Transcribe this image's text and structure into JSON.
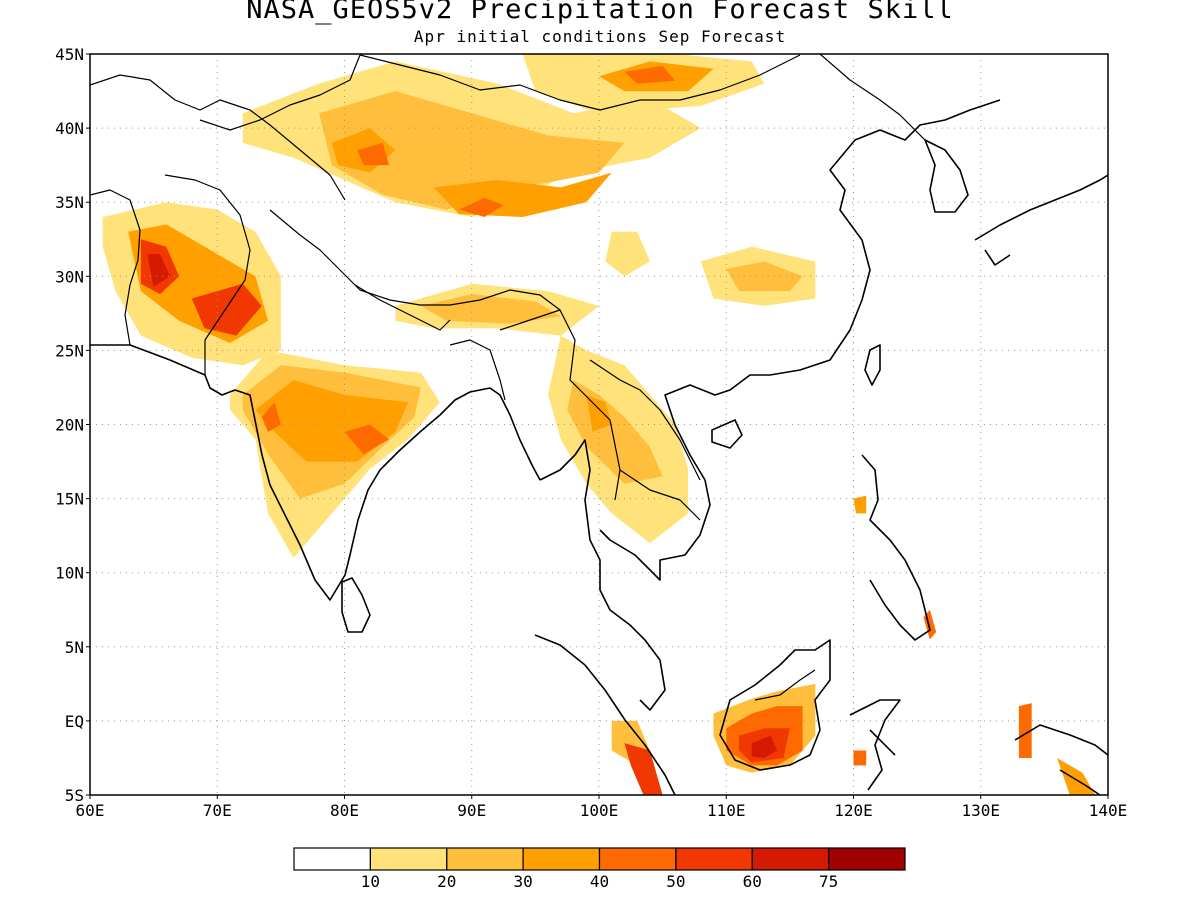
{
  "header": {
    "title": "NASA_GEOS5v2 Precipitation Forecast Skill",
    "subtitle": "Apr initial conditions  Sep Forecast"
  },
  "map": {
    "lon_range": [
      60,
      140
    ],
    "lat_range": [
      -5,
      45
    ],
    "grid": true,
    "lon_ticks": [
      {
        "value": 60,
        "label": "60E"
      },
      {
        "value": 70,
        "label": "70E"
      },
      {
        "value": 80,
        "label": "80E"
      },
      {
        "value": 90,
        "label": "90E"
      },
      {
        "value": 100,
        "label": "100E"
      },
      {
        "value": 110,
        "label": "110E"
      },
      {
        "value": 120,
        "label": "120E"
      },
      {
        "value": 130,
        "label": "130E"
      },
      {
        "value": 140,
        "label": "140E"
      }
    ],
    "lat_ticks": [
      {
        "value": 45,
        "label": "45N"
      },
      {
        "value": 40,
        "label": "40N"
      },
      {
        "value": 35,
        "label": "35N"
      },
      {
        "value": 30,
        "label": "30N"
      },
      {
        "value": 25,
        "label": "25N"
      },
      {
        "value": 20,
        "label": "20N"
      },
      {
        "value": 15,
        "label": "15N"
      },
      {
        "value": 10,
        "label": "10N"
      },
      {
        "value": 5,
        "label": "5N"
      },
      {
        "value": 0,
        "label": "EQ"
      },
      {
        "value": -5,
        "label": "5S"
      }
    ]
  },
  "colorbar": {
    "colors": [
      "#ffffff",
      "#ffe27a",
      "#ffbf3c",
      "#ff9f00",
      "#ff6a00",
      "#f03800",
      "#d41a00",
      "#a00000"
    ],
    "labels": [
      "10",
      "20",
      "30",
      "40",
      "50",
      "60",
      "75"
    ]
  },
  "skill_regions": [
    {
      "name": "pakistan-afghanistan",
      "level": 1,
      "poly": [
        [
          61,
          34
        ],
        [
          66,
          35
        ],
        [
          70,
          34.5
        ],
        [
          73,
          33
        ],
        [
          75,
          30
        ],
        [
          75,
          25
        ],
        [
          72,
          24
        ],
        [
          68,
          24.5
        ],
        [
          64,
          26
        ],
        [
          62,
          29
        ],
        [
          61,
          32
        ]
      ]
    },
    {
      "name": "pakistan-afghanistan",
      "level": 3,
      "poly": [
        [
          63,
          33
        ],
        [
          66,
          33.5
        ],
        [
          70,
          31.5
        ],
        [
          73,
          30
        ],
        [
          74,
          27
        ],
        [
          71,
          25.5
        ],
        [
          67,
          27
        ],
        [
          64,
          29
        ]
      ]
    },
    {
      "name": "pakistan-afghanistan",
      "level": 5,
      "poly": [
        [
          64,
          32.5
        ],
        [
          66,
          32
        ],
        [
          67,
          30
        ],
        [
          65.5,
          28.8
        ],
        [
          64,
          29.5
        ]
      ]
    },
    {
      "name": "pakistan-afghanistan",
      "level": 5,
      "poly": [
        [
          68,
          28.5
        ],
        [
          72,
          29.5
        ],
        [
          73.5,
          28
        ],
        [
          71.5,
          26
        ],
        [
          69,
          26.5
        ]
      ]
    },
    {
      "name": "pakistan-afghanistan",
      "level": 6,
      "poly": [
        [
          64.5,
          31.5
        ],
        [
          65.5,
          31.5
        ],
        [
          66.3,
          30
        ],
        [
          65,
          29.3
        ]
      ]
    },
    {
      "name": "india",
      "level": 1,
      "poly": [
        [
          71,
          22
        ],
        [
          74,
          25
        ],
        [
          80,
          24
        ],
        [
          86,
          23.5
        ],
        [
          87.5,
          21.5
        ],
        [
          85,
          19
        ],
        [
          82,
          17
        ],
        [
          79,
          14
        ],
        [
          76,
          11
        ],
        [
          74,
          14
        ],
        [
          73,
          19
        ],
        [
          71,
          21
        ]
      ]
    },
    {
      "name": "india",
      "level": 2,
      "poly": [
        [
          72,
          22
        ],
        [
          75,
          24
        ],
        [
          80,
          23.5
        ],
        [
          86,
          22.5
        ],
        [
          85.5,
          20.5
        ],
        [
          83,
          18.5
        ],
        [
          80,
          16
        ],
        [
          76.5,
          15
        ],
        [
          74,
          18
        ],
        [
          72,
          21
        ]
      ]
    },
    {
      "name": "india",
      "level": 3,
      "poly": [
        [
          73,
          21
        ],
        [
          76,
          23
        ],
        [
          80,
          22
        ],
        [
          85,
          21.5
        ],
        [
          84,
          19.5
        ],
        [
          81,
          17.5
        ],
        [
          77,
          17.5
        ],
        [
          74.5,
          19.5
        ]
      ]
    },
    {
      "name": "india",
      "level": 4,
      "poly": [
        [
          73.5,
          20.5
        ],
        [
          74.5,
          21.5
        ],
        [
          75,
          20
        ],
        [
          74,
          19.5
        ]
      ]
    },
    {
      "name": "india",
      "level": 4,
      "poly": [
        [
          80,
          19.5
        ],
        [
          82,
          20
        ],
        [
          83.5,
          19
        ],
        [
          81.5,
          18
        ]
      ]
    },
    {
      "name": "tarim-mongolia",
      "level": 1,
      "poly": [
        [
          72,
          41
        ],
        [
          78,
          43
        ],
        [
          84,
          44.5
        ],
        [
          92,
          43
        ],
        [
          98,
          41
        ],
        [
          104,
          42
        ],
        [
          108,
          40
        ],
        [
          104,
          38
        ],
        [
          98,
          37
        ],
        [
          93,
          35
        ],
        [
          90,
          34
        ],
        [
          84,
          35
        ],
        [
          80,
          36.5
        ],
        [
          76,
          38
        ],
        [
          72,
          39
        ]
      ]
    },
    {
      "name": "tarim-mongolia",
      "level": 2,
      "poly": [
        [
          78,
          41
        ],
        [
          84,
          42.5
        ],
        [
          90,
          41
        ],
        [
          96,
          39.5
        ],
        [
          102,
          39
        ],
        [
          100,
          37
        ],
        [
          94,
          36
        ],
        [
          88,
          34.5
        ],
        [
          83,
          35.5
        ],
        [
          79,
          37.5
        ]
      ]
    },
    {
      "name": "tarim-mongolia",
      "level": 3,
      "poly": [
        [
          79,
          39
        ],
        [
          82,
          40
        ],
        [
          84,
          38.5
        ],
        [
          82,
          37
        ],
        [
          79.5,
          37.5
        ]
      ]
    },
    {
      "name": "tarim-mongolia",
      "level": 3,
      "poly": [
        [
          87,
          36
        ],
        [
          92,
          36.5
        ],
        [
          97,
          36
        ],
        [
          101,
          37
        ],
        [
          99,
          35
        ],
        [
          94,
          34
        ],
        [
          89,
          34.2
        ]
      ]
    },
    {
      "name": "tarim-mongolia",
      "level": 4,
      "poly": [
        [
          81,
          38.5
        ],
        [
          83,
          39
        ],
        [
          83.5,
          37.5
        ],
        [
          81.5,
          37.5
        ]
      ]
    },
    {
      "name": "tarim-mongolia",
      "level": 4,
      "poly": [
        [
          89,
          34.5
        ],
        [
          91,
          35.3
        ],
        [
          92.5,
          34.8
        ],
        [
          91,
          34
        ]
      ]
    },
    {
      "name": "mongolia",
      "level": 1,
      "poly": [
        [
          94,
          45
        ],
        [
          106,
          45
        ],
        [
          112,
          44.5
        ],
        [
          113,
          43
        ],
        [
          108,
          41.5
        ],
        [
          100,
          41
        ],
        [
          95,
          42.5
        ]
      ]
    },
    {
      "name": "mongolia",
      "level": 3,
      "poly": [
        [
          100,
          43.5
        ],
        [
          104,
          44.5
        ],
        [
          109,
          44
        ],
        [
          107,
          42.5
        ],
        [
          102,
          42.5
        ]
      ]
    },
    {
      "name": "mongolia",
      "level": 4,
      "poly": [
        [
          102,
          43.8
        ],
        [
          105,
          44.2
        ],
        [
          106,
          43.2
        ],
        [
          103,
          43
        ]
      ]
    },
    {
      "name": "tibet",
      "level": 1,
      "poly": [
        [
          84,
          28
        ],
        [
          90,
          29.5
        ],
        [
          96,
          29
        ],
        [
          100,
          28
        ],
        [
          97,
          26
        ],
        [
          92,
          26.5
        ],
        [
          87,
          26.5
        ],
        [
          84,
          27
        ]
      ]
    },
    {
      "name": "tibet",
      "level": 2,
      "poly": [
        [
          86,
          28
        ],
        [
          90,
          28.8
        ],
        [
          95,
          28.3
        ],
        [
          97,
          27.3
        ],
        [
          93,
          26.8
        ],
        [
          88,
          27
        ]
      ]
    },
    {
      "name": "central-china",
      "level": 1,
      "poly": [
        [
          108,
          31
        ],
        [
          112,
          32
        ],
        [
          117,
          31
        ],
        [
          117,
          28.5
        ],
        [
          113,
          28
        ],
        [
          109,
          28.5
        ]
      ]
    },
    {
      "name": "central-china",
      "level": 2,
      "poly": [
        [
          110,
          30.5
        ],
        [
          113,
          31
        ],
        [
          116,
          30
        ],
        [
          115,
          29
        ],
        [
          111,
          29
        ]
      ]
    },
    {
      "name": "central-china",
      "level": 1,
      "poly": [
        [
          101,
          33
        ],
        [
          103,
          33
        ],
        [
          104,
          31
        ],
        [
          102,
          30
        ],
        [
          100.5,
          31
        ]
      ]
    },
    {
      "name": "indochina",
      "level": 1,
      "poly": [
        [
          97,
          26
        ],
        [
          99,
          25
        ],
        [
          102,
          24
        ],
        [
          104,
          22
        ],
        [
          106,
          20
        ],
        [
          107,
          17
        ],
        [
          107,
          14
        ],
        [
          104,
          12
        ],
        [
          101,
          14
        ],
        [
          99,
          16
        ],
        [
          97,
          19
        ],
        [
          96,
          22
        ]
      ]
    },
    {
      "name": "indochina",
      "level": 2,
      "poly": [
        [
          98,
          23
        ],
        [
          100,
          22
        ],
        [
          102,
          20.5
        ],
        [
          104,
          18.5
        ],
        [
          105,
          16.5
        ],
        [
          102,
          16
        ],
        [
          99,
          18.5
        ],
        [
          97.5,
          21
        ]
      ]
    },
    {
      "name": "indochina",
      "level": 3,
      "poly": [
        [
          99,
          22
        ],
        [
          100.5,
          21.5
        ],
        [
          101,
          20
        ],
        [
          99.5,
          19.5
        ]
      ]
    },
    {
      "name": "borneo",
      "level": 2,
      "poly": [
        [
          109,
          0.5
        ],
        [
          112,
          1.5
        ],
        [
          114,
          2
        ],
        [
          117,
          2.5
        ],
        [
          117,
          -1
        ],
        [
          115,
          -3
        ],
        [
          112,
          -3.5
        ],
        [
          110,
          -3
        ],
        [
          109,
          -1
        ]
      ]
    },
    {
      "name": "borneo",
      "level": 4,
      "poly": [
        [
          110,
          -0.5
        ],
        [
          112,
          0.5
        ],
        [
          114,
          1
        ],
        [
          116,
          1
        ],
        [
          116,
          -2
        ],
        [
          114,
          -3
        ],
        [
          112,
          -3
        ],
        [
          110,
          -2
        ]
      ]
    },
    {
      "name": "borneo",
      "level": 5,
      "poly": [
        [
          111,
          -1
        ],
        [
          113,
          -0.5
        ],
        [
          115,
          -0.5
        ],
        [
          114.5,
          -2.5
        ],
        [
          112,
          -2.8
        ],
        [
          111,
          -2
        ]
      ]
    },
    {
      "name": "borneo",
      "level": 6,
      "poly": [
        [
          112,
          -1.5
        ],
        [
          113.5,
          -1
        ],
        [
          114,
          -2
        ],
        [
          113,
          -2.5
        ],
        [
          112,
          -2.4
        ]
      ]
    },
    {
      "name": "sumatra",
      "level": 2,
      "poly": [
        [
          101,
          0
        ],
        [
          103,
          0
        ],
        [
          104,
          -2
        ],
        [
          103,
          -3
        ],
        [
          101,
          -2
        ]
      ]
    },
    {
      "name": "sumatra",
      "level": 5,
      "poly": [
        [
          102,
          -1.5
        ],
        [
          104,
          -2
        ],
        [
          105,
          -5
        ],
        [
          103.5,
          -5
        ],
        [
          102.5,
          -3
        ]
      ]
    },
    {
      "name": "philippines",
      "level": 3,
      "poly": [
        [
          120,
          15
        ],
        [
          121,
          15.2
        ],
        [
          121,
          14
        ],
        [
          120.2,
          14
        ]
      ]
    },
    {
      "name": "philippines",
      "level": 4,
      "poly": [
        [
          125.5,
          7
        ],
        [
          126,
          7.5
        ],
        [
          126.5,
          6
        ],
        [
          126,
          5.5
        ]
      ]
    },
    {
      "name": "png",
      "level": 4,
      "poly": [
        [
          133,
          1
        ],
        [
          134,
          1.2
        ],
        [
          134,
          -2.5
        ],
        [
          133,
          -2.5
        ]
      ]
    },
    {
      "name": "png",
      "level": 3,
      "poly": [
        [
          136,
          -2.5
        ],
        [
          138,
          -3.5
        ],
        [
          139,
          -5
        ],
        [
          137,
          -5
        ]
      ]
    },
    {
      "name": "sulawesi",
      "level": 4,
      "poly": [
        [
          120,
          -2
        ],
        [
          121,
          -2
        ],
        [
          121,
          -3
        ],
        [
          120,
          -3
        ]
      ]
    }
  ]
}
